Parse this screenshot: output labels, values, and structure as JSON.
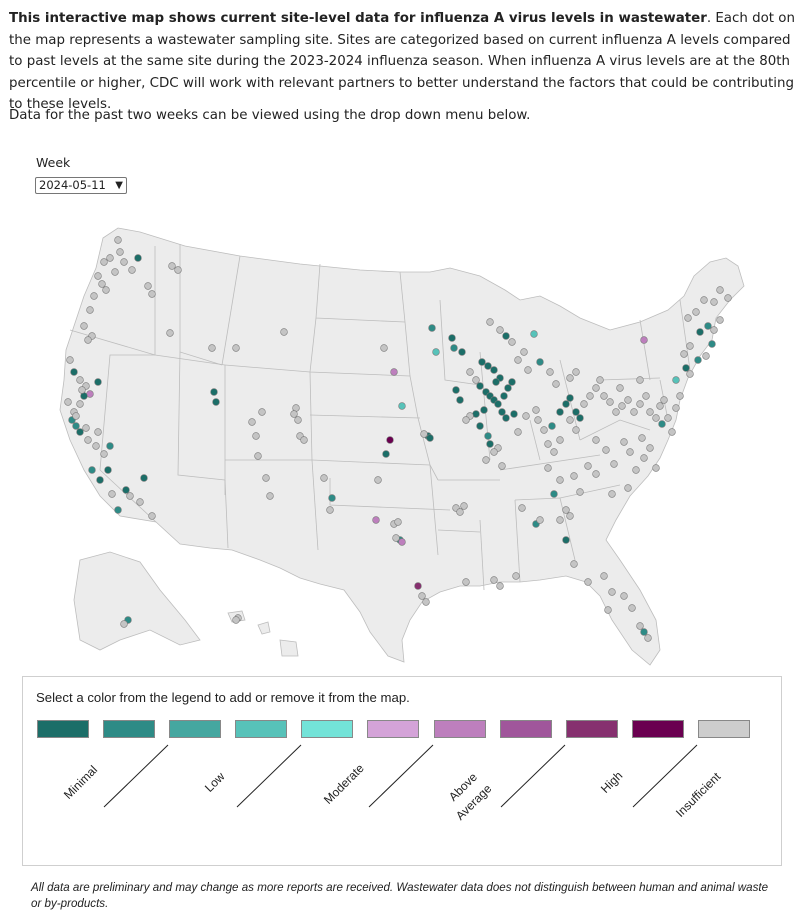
{
  "intro": {
    "bold": "This interactive map shows current site-level data for influenza A virus levels in wastewater",
    "rest": ". Each dot on the map represents a wastewater sampling site. Sites are categorized based on current influenza A levels compared to past levels at the same site during the 2023-2024 influenza season. When influenza A virus levels are at the 80th percentile or higher, CDC will work with relevant partners to better understand the factors that could be contributing to these levels."
  },
  "subnote": "Data for the past two weeks can be viewed using the drop down menu below.",
  "week": {
    "label": "Week",
    "selected": "2024-05-11"
  },
  "legend": {
    "title": "Select a color from the legend to add or remove it from the map.",
    "swatch_colors": [
      "#1c6e68",
      "#2e8b86",
      "#45a7a0",
      "#57c2b9",
      "#73e3d8",
      "#d4a3d8",
      "#bd7fbd",
      "#a0569b",
      "#86306f",
      "#6a0050",
      "#cdcdcd"
    ],
    "labels": [
      "Minimal",
      "Low",
      "Moderate",
      "Above",
      "Average",
      "High",
      "Insufficient"
    ]
  },
  "colors": {
    "minimal": "#1c6e68",
    "low": "#2e8b86",
    "moderate": "#57c2b9",
    "above_avg": "#bd7fbd",
    "high": "#86306f",
    "very_high": "#6a0050",
    "insufficient": "#c4c4c4",
    "state_fill": "#ececec",
    "state_stroke": "#bdbdbd"
  },
  "footnote": "All data are preliminary and may change as more reports are received. Wastewater data does not distinguish between human and animal waste or by-products."
}
